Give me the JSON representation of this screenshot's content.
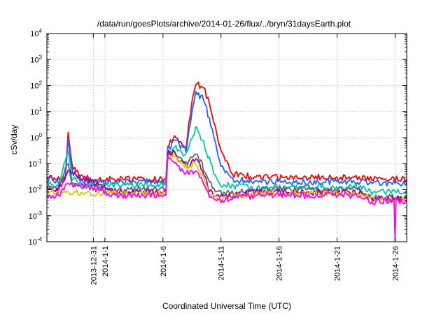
{
  "chart_data": {
    "type": "line",
    "title": "/data/run/goesPlots/archive/2014-01-26/flux/../bryn/31daysEarth.plot",
    "xlabel": "Coordinated Universal Time (UTC)",
    "ylabel": "cSv/day",
    "ylog": true,
    "ylim": [
      0.0001,
      10000
    ],
    "xlim": [
      "2013-12-27T00:00",
      "2014-01-27T00:00"
    ],
    "grid": true,
    "legend": "none",
    "y_ticks": [
      {
        "base": "10",
        "exp": "-4",
        "value": 0.0001
      },
      {
        "base": "10",
        "exp": "-3",
        "value": 0.001
      },
      {
        "base": "10",
        "exp": "-2",
        "value": 0.01
      },
      {
        "base": "10",
        "exp": "-1",
        "value": 0.1
      },
      {
        "base": "10",
        "exp": "0",
        "value": 1
      },
      {
        "base": "10",
        "exp": "1",
        "value": 10
      },
      {
        "base": "10",
        "exp": "2",
        "value": 100
      },
      {
        "base": "10",
        "exp": "3",
        "value": 1000
      },
      {
        "base": "10",
        "exp": "4",
        "value": 10000
      }
    ],
    "x_ticks": [
      {
        "label": "2013-12-31",
        "date": "2013-12-31T00:00"
      },
      {
        "label": "2014-1-1",
        "date": "2014-01-01T00:00"
      },
      {
        "label": "2014-1-6",
        "date": "2014-01-06T00:00"
      },
      {
        "label": "2014-1-11",
        "date": "2014-01-11T00:00"
      },
      {
        "label": "2014-1-16",
        "date": "2014-01-16T00:00"
      },
      {
        "label": "2014-1-21",
        "date": "2014-01-21T00:00"
      },
      {
        "label": "2014-1-26",
        "date": "2014-01-26T00:00"
      }
    ],
    "series": [
      {
        "color": "#ff0000",
        "points": [
          [
            "2013-12-27T00:00",
            0.03
          ],
          [
            "2013-12-28T00:00",
            0.025
          ],
          [
            "2013-12-28T14:00",
            0.03
          ],
          [
            "2013-12-28T20:00",
            1.6
          ],
          [
            "2013-12-29T04:00",
            0.08
          ],
          [
            "2013-12-30T00:00",
            0.03
          ],
          [
            "2013-12-31T00:00",
            0.025
          ],
          [
            "2014-01-02T00:00",
            0.025
          ],
          [
            "2014-01-04T00:00",
            0.025
          ],
          [
            "2014-01-06T06:00",
            0.025
          ],
          [
            "2014-01-06T10:00",
            0.4
          ],
          [
            "2014-01-07T00:00",
            1.3
          ],
          [
            "2014-01-07T12:00",
            0.6
          ],
          [
            "2014-01-08T00:00",
            0.5
          ],
          [
            "2014-01-08T12:00",
            25
          ],
          [
            "2014-01-08T20:00",
            120
          ],
          [
            "2014-01-09T12:00",
            80
          ],
          [
            "2014-01-10T00:00",
            20
          ],
          [
            "2014-01-10T12:00",
            3
          ],
          [
            "2014-01-11T00:00",
            0.3
          ],
          [
            "2014-01-11T12:00",
            0.1
          ],
          [
            "2014-01-12T00:00",
            0.04
          ],
          [
            "2014-01-14T00:00",
            0.03
          ],
          [
            "2014-01-17T00:00",
            0.03
          ],
          [
            "2014-01-20T00:00",
            0.03
          ],
          [
            "2014-01-23T00:00",
            0.03
          ],
          [
            "2014-01-24T00:00",
            0.025
          ],
          [
            "2014-01-26T00:00",
            0.025
          ],
          [
            "2014-01-27T00:00",
            0.025
          ]
        ]
      },
      {
        "color": "#1e64ff",
        "points": [
          [
            "2013-12-27T00:00",
            0.025
          ],
          [
            "2013-12-28T00:00",
            0.02
          ],
          [
            "2013-12-28T14:00",
            0.025
          ],
          [
            "2013-12-28T20:00",
            0.9
          ],
          [
            "2013-12-29T04:00",
            0.05
          ],
          [
            "2013-12-30T00:00",
            0.02
          ],
          [
            "2013-12-31T00:00",
            0.02
          ],
          [
            "2014-01-02T00:00",
            0.02
          ],
          [
            "2014-01-04T00:00",
            0.02
          ],
          [
            "2014-01-06T06:00",
            0.02
          ],
          [
            "2014-01-06T10:00",
            0.3
          ],
          [
            "2014-01-07T00:00",
            0.9
          ],
          [
            "2014-01-07T12:00",
            0.45
          ],
          [
            "2014-01-08T00:00",
            0.35
          ],
          [
            "2014-01-08T12:00",
            10
          ],
          [
            "2014-01-08T20:00",
            50
          ],
          [
            "2014-01-09T12:00",
            30
          ],
          [
            "2014-01-10T00:00",
            5
          ],
          [
            "2014-01-10T12:00",
            0.8
          ],
          [
            "2014-01-11T00:00",
            0.08
          ],
          [
            "2014-01-11T12:00",
            0.04
          ],
          [
            "2014-01-12T00:00",
            0.025
          ],
          [
            "2014-01-14T00:00",
            0.02
          ],
          [
            "2014-01-17T00:00",
            0.02
          ],
          [
            "2014-01-20T00:00",
            0.02
          ],
          [
            "2014-01-23T00:00",
            0.02
          ],
          [
            "2014-01-24T00:00",
            0.018
          ],
          [
            "2014-01-26T00:00",
            0.018
          ],
          [
            "2014-01-27T00:00",
            0.018
          ]
        ]
      },
      {
        "color": "#00c8a0",
        "points": [
          [
            "2013-12-27T00:00",
            0.02
          ],
          [
            "2013-12-28T00:00",
            0.015
          ],
          [
            "2013-12-28T20:00",
            0.3
          ],
          [
            "2013-12-29T04:00",
            0.03
          ],
          [
            "2013-12-30T00:00",
            0.015
          ],
          [
            "2014-01-02T00:00",
            0.015
          ],
          [
            "2014-01-04T00:00",
            0.015
          ],
          [
            "2014-01-06T06:00",
            0.015
          ],
          [
            "2014-01-06T10:00",
            0.2
          ],
          [
            "2014-01-07T00:00",
            0.5
          ],
          [
            "2014-01-07T12:00",
            0.25
          ],
          [
            "2014-01-08T00:00",
            0.2
          ],
          [
            "2014-01-08T20:00",
            2.5
          ],
          [
            "2014-01-09T12:00",
            0.6
          ],
          [
            "2014-01-10T00:00",
            0.15
          ],
          [
            "2014-01-10T12:00",
            0.03
          ],
          [
            "2014-01-11T00:00",
            0.015
          ],
          [
            "2014-01-14T00:00",
            0.012
          ],
          [
            "2014-01-17T00:00",
            0.012
          ],
          [
            "2014-01-20T00:00",
            0.012
          ],
          [
            "2014-01-23T00:00",
            0.012
          ],
          [
            "2014-01-24T00:00",
            0.008
          ],
          [
            "2014-01-26T00:00",
            0.008
          ],
          [
            "2014-01-27T00:00",
            0.008
          ]
        ]
      },
      {
        "color": "#646464",
        "points": [
          [
            "2013-12-27T00:00",
            0.012
          ],
          [
            "2013-12-28T00:00",
            0.012
          ],
          [
            "2013-12-28T20:00",
            0.1
          ],
          [
            "2013-12-29T04:00",
            0.015
          ],
          [
            "2014-01-02T00:00",
            0.01
          ],
          [
            "2014-01-04T00:00",
            0.01
          ],
          [
            "2014-01-06T06:00",
            0.01
          ],
          [
            "2014-01-06T10:00",
            0.2
          ],
          [
            "2014-01-07T00:00",
            0.3
          ],
          [
            "2014-01-07T12:00",
            0.15
          ],
          [
            "2014-01-08T00:00",
            0.1
          ],
          [
            "2014-01-08T20:00",
            0.3
          ],
          [
            "2014-01-09T12:00",
            0.07
          ],
          [
            "2014-01-10T00:00",
            0.02
          ],
          [
            "2014-01-10T12:00",
            0.008
          ],
          [
            "2014-01-11T00:00",
            0.007
          ],
          [
            "2014-01-14T00:00",
            0.01
          ],
          [
            "2014-01-17T00:00",
            0.01
          ],
          [
            "2014-01-20T00:00",
            0.01
          ],
          [
            "2014-01-23T00:00",
            0.01
          ],
          [
            "2014-01-24T00:00",
            0.005
          ],
          [
            "2014-01-26T00:00",
            0.005
          ],
          [
            "2014-01-27T00:00",
            0.005
          ]
        ]
      },
      {
        "color": "#a000a0",
        "points": [
          [
            "2013-12-27T00:00",
            0.01
          ],
          [
            "2013-12-28T00:00",
            0.01
          ],
          [
            "2013-12-28T20:00",
            0.05
          ],
          [
            "2014-01-02T00:00",
            0.008
          ],
          [
            "2014-01-04T00:00",
            0.008
          ],
          [
            "2014-01-06T06:00",
            0.008
          ],
          [
            "2014-01-06T10:00",
            0.25
          ],
          [
            "2014-01-07T00:00",
            0.25
          ],
          [
            "2014-01-07T12:00",
            0.12
          ],
          [
            "2014-01-08T00:00",
            0.08
          ],
          [
            "2014-01-08T20:00",
            0.15
          ],
          [
            "2014-01-09T12:00",
            0.04
          ],
          [
            "2014-01-10T00:00",
            0.01
          ],
          [
            "2014-01-10T12:00",
            0.006
          ],
          [
            "2014-01-11T00:00",
            0.005
          ],
          [
            "2014-01-14T00:00",
            0.008
          ],
          [
            "2014-01-17T00:00",
            0.008
          ],
          [
            "2014-01-20T00:00",
            0.008
          ],
          [
            "2014-01-23T00:00",
            0.008
          ],
          [
            "2014-01-24T00:00",
            0.0045
          ],
          [
            "2014-01-26T00:00",
            0.0045
          ],
          [
            "2014-01-27T00:00",
            0.0045
          ]
        ]
      },
      {
        "color": "#e0c800",
        "points": [
          [
            "2013-12-27T00:00",
            0.008
          ],
          [
            "2013-12-28T00:00",
            0.008
          ],
          [
            "2014-01-02T00:00",
            0.007
          ],
          [
            "2014-01-06T06:00",
            0.007
          ],
          [
            "2014-01-06T10:00",
            0.2
          ],
          [
            "2014-01-07T00:00",
            0.2
          ],
          [
            "2014-01-07T12:00",
            0.1
          ],
          [
            "2014-01-08T00:00",
            0.07
          ],
          [
            "2014-01-08T20:00",
            0.1
          ],
          [
            "2014-01-09T12:00",
            0.03
          ],
          [
            "2014-01-10T00:00",
            0.008
          ],
          [
            "2014-01-10T12:00",
            0.005
          ],
          [
            "2014-01-11T00:00",
            0.0045
          ],
          [
            "2014-01-14T00:00",
            0.007
          ],
          [
            "2014-01-20T00:00",
            0.007
          ],
          [
            "2014-01-23T00:00",
            0.007
          ],
          [
            "2014-01-24T00:00",
            0.004
          ],
          [
            "2014-01-27T00:00",
            0.004
          ]
        ]
      },
      {
        "color": "#ff00ff",
        "points": [
          [
            "2013-12-27T00:00",
            0.006
          ],
          [
            "2013-12-28T00:00",
            0.006
          ],
          [
            "2013-12-28T20:00",
            0.02
          ],
          [
            "2014-01-02T00:00",
            0.006
          ],
          [
            "2014-01-04T00:00",
            0.006
          ],
          [
            "2014-01-06T06:00",
            0.006
          ],
          [
            "2014-01-06T10:00",
            0.18
          ],
          [
            "2014-01-07T00:00",
            0.12
          ],
          [
            "2014-01-07T12:00",
            0.06
          ],
          [
            "2014-01-08T00:00",
            0.04
          ],
          [
            "2014-01-08T20:00",
            0.06
          ],
          [
            "2014-01-09T12:00",
            0.02
          ],
          [
            "2014-01-10T00:00",
            0.006
          ],
          [
            "2014-01-10T12:00",
            0.0042
          ],
          [
            "2014-01-11T00:00",
            0.004
          ],
          [
            "2014-01-14T00:00",
            0.006
          ],
          [
            "2014-01-17T00:00",
            0.006
          ],
          [
            "2014-01-20T00:00",
            0.006
          ],
          [
            "2014-01-23T00:00",
            0.006
          ],
          [
            "2014-01-24T00:00",
            0.0035
          ],
          [
            "2014-01-25T22:00",
            0.0035
          ],
          [
            "2014-01-26T00:00",
            0.00011
          ],
          [
            "2014-01-26T02:00",
            0.004
          ],
          [
            "2014-01-27T00:00",
            0.0035
          ]
        ]
      }
    ]
  }
}
